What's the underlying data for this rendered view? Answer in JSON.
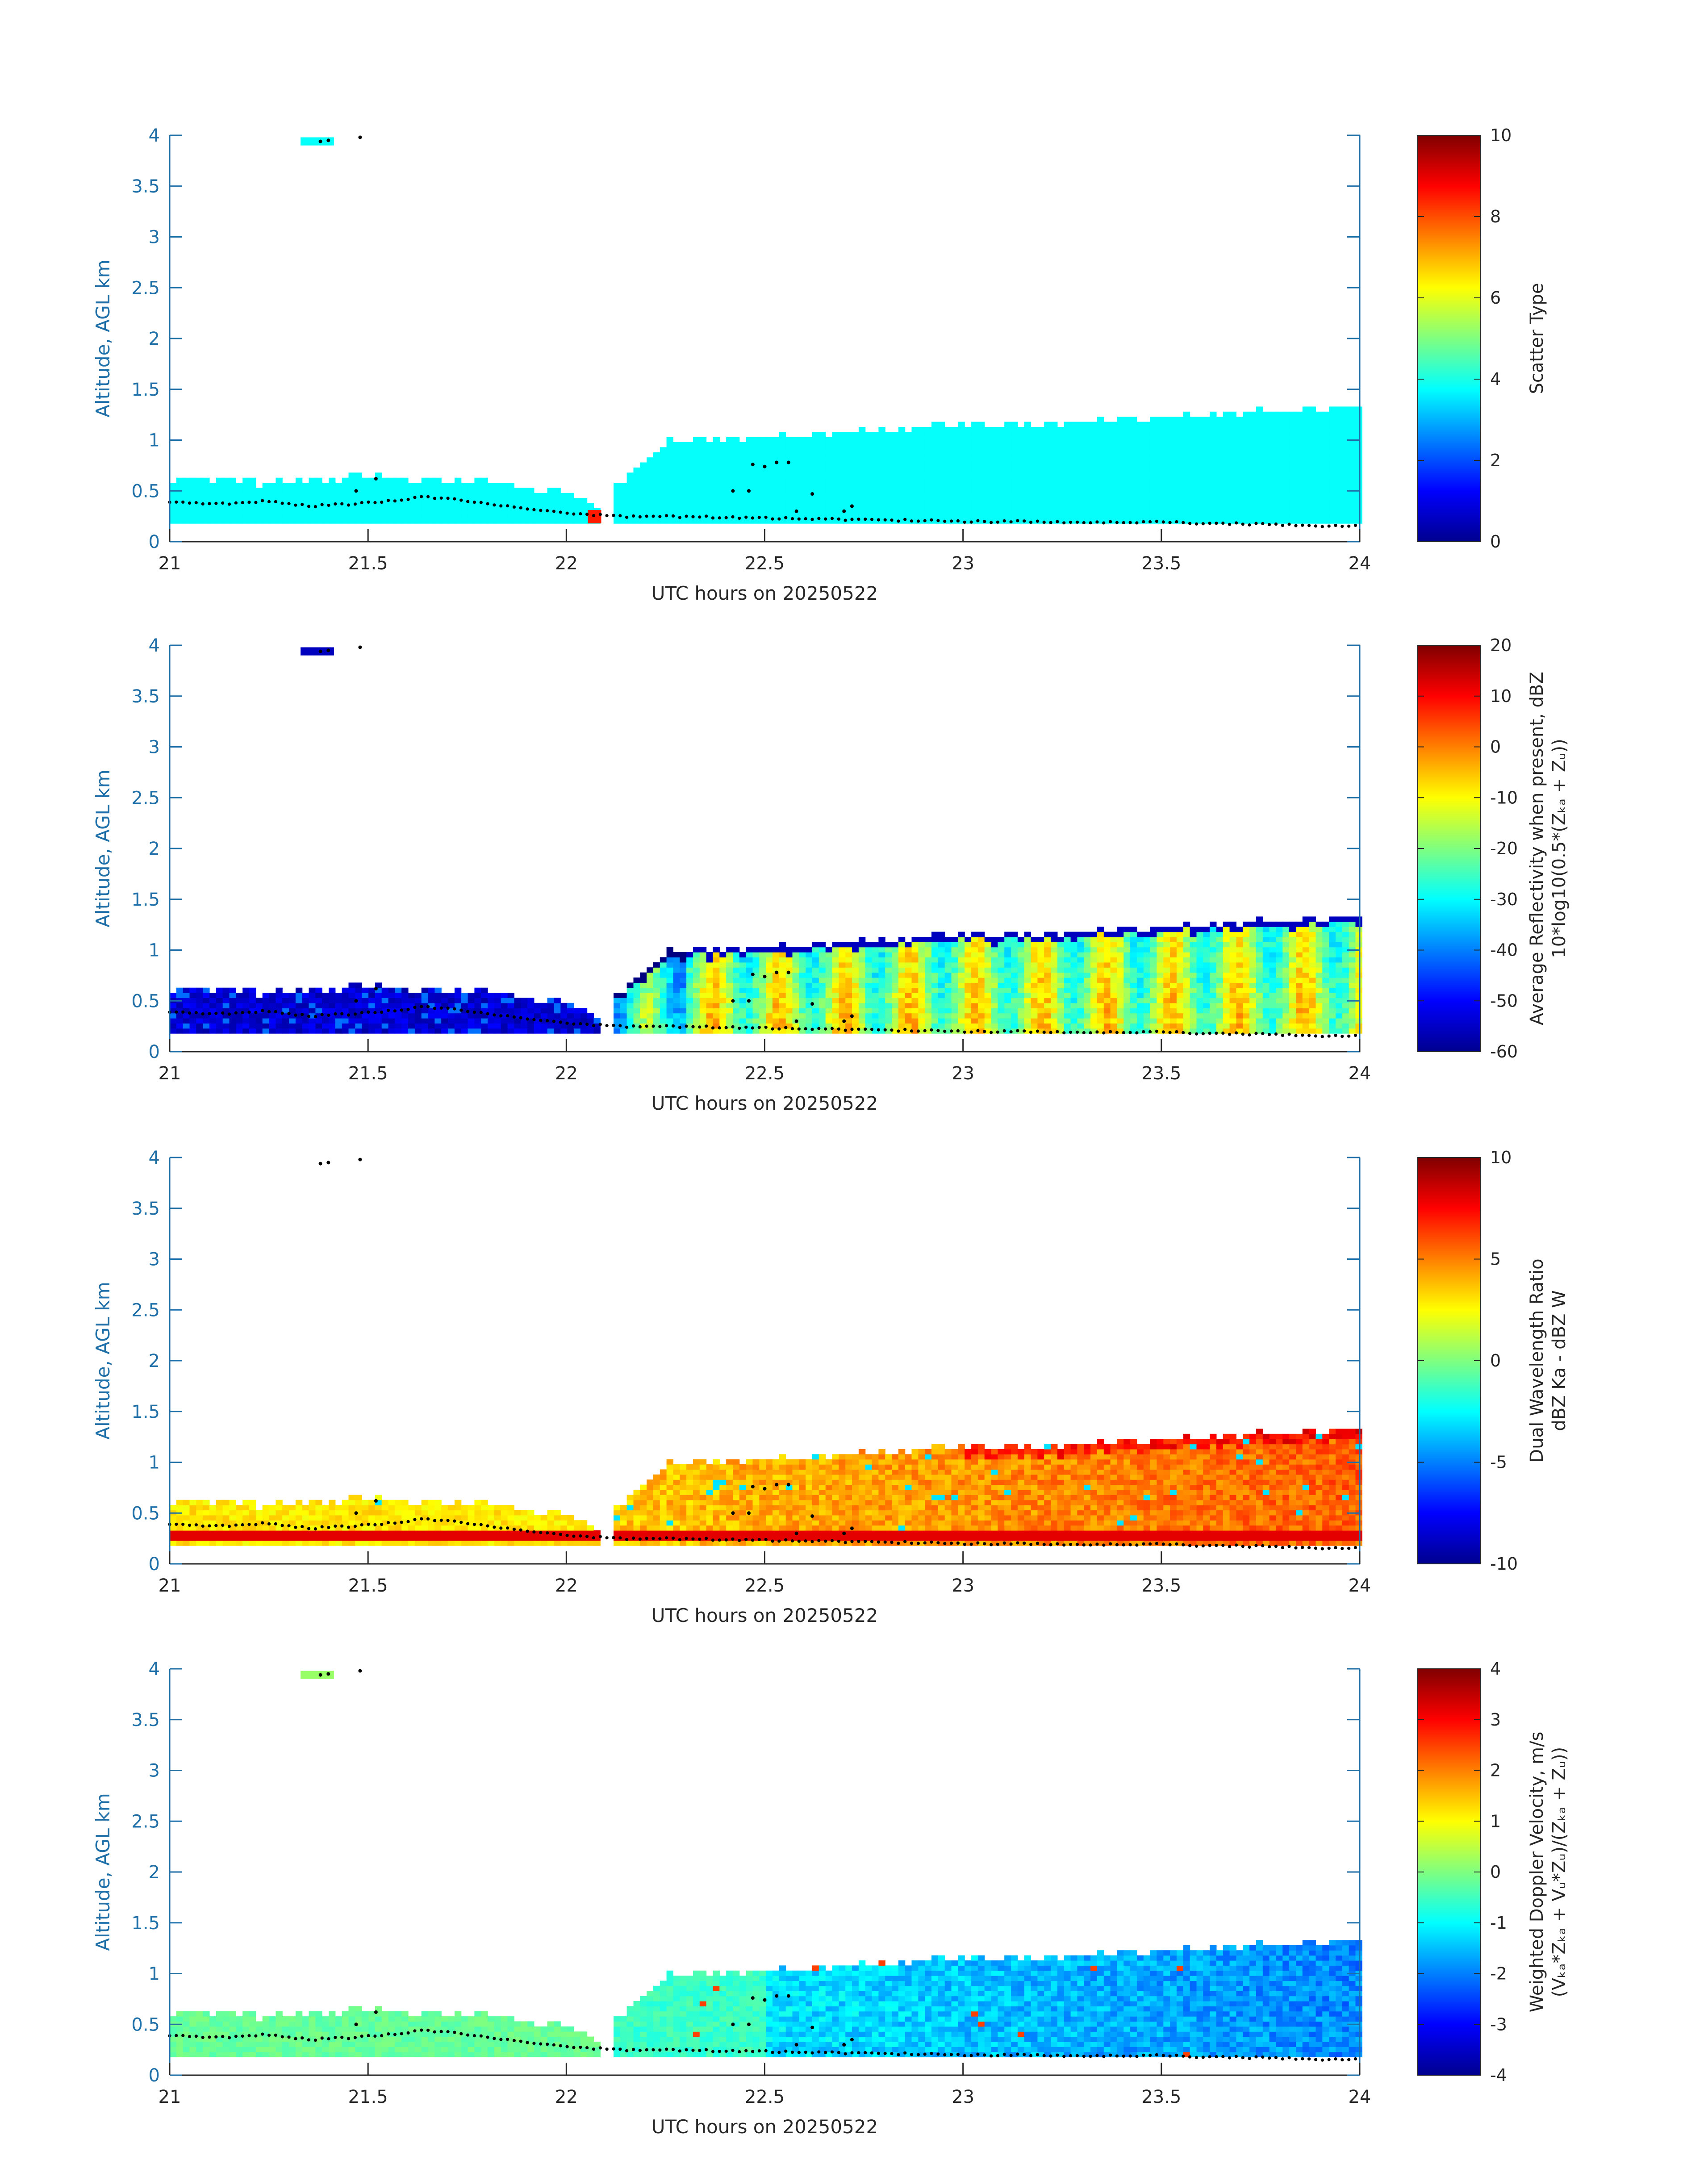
{
  "chart_data": [
    {
      "type": "heatmap",
      "id": "scatter-type",
      "x_range": [
        21,
        24
      ],
      "y_range": [
        0,
        4
      ],
      "xticks": [
        "21",
        "21.5",
        "22",
        "22.5",
        "23",
        "23.5",
        "24"
      ],
      "yticks": [
        "0",
        "0.5",
        "1",
        "1.5",
        "2",
        "2.5",
        "3",
        "3.5",
        "4"
      ],
      "xlabel": "UTC hours on 20250522",
      "ylabel": "Altitude, AGL km",
      "colorbar": {
        "range": [
          0,
          10
        ],
        "ticks": [
          "0",
          "2",
          "4",
          "6",
          "8",
          "10"
        ],
        "label": "Scatter Type",
        "label2": ""
      },
      "field": "scatter",
      "dominant_value": 3.8,
      "outlier": {
        "x": 22.07,
        "y": 0.25,
        "value": 8.5
      }
    },
    {
      "type": "heatmap",
      "id": "reflectivity",
      "x_range": [
        21,
        24
      ],
      "y_range": [
        0,
        4
      ],
      "xticks": [
        "21",
        "21.5",
        "22",
        "22.5",
        "23",
        "23.5",
        "24"
      ],
      "yticks": [
        "0",
        "0.5",
        "1",
        "1.5",
        "2",
        "2.5",
        "3",
        "3.5",
        "4"
      ],
      "xlabel": "UTC hours on 20250522",
      "ylabel": "Altitude, AGL km",
      "colorbar": {
        "range": [
          -60,
          20
        ],
        "ticks": [
          "-60",
          "-50",
          "-40",
          "-30",
          "-20",
          "-10",
          "0",
          "10",
          "20"
        ],
        "label": "Average Reflectivity when present, dBZ",
        "label2": "10*log10(0.5*(Zₖₐ + Zᵤ))"
      },
      "field": "reflectivity"
    },
    {
      "type": "heatmap",
      "id": "dwr",
      "x_range": [
        21,
        24
      ],
      "y_range": [
        0,
        4
      ],
      "xticks": [
        "21",
        "21.5",
        "22",
        "22.5",
        "23",
        "23.5",
        "24"
      ],
      "yticks": [
        "0",
        "0.5",
        "1",
        "1.5",
        "2",
        "2.5",
        "3",
        "3.5",
        "4"
      ],
      "xlabel": "UTC hours on 20250522",
      "ylabel": "Altitude, AGL km",
      "colorbar": {
        "range": [
          -10,
          10
        ],
        "ticks": [
          "-10",
          "-5",
          "0",
          "5",
          "10"
        ],
        "label": "Dual Wavelength Ratio",
        "label2": "dBZ Ka - dBZ W"
      },
      "field": "dwr"
    },
    {
      "type": "heatmap",
      "id": "doppler",
      "x_range": [
        21,
        24
      ],
      "y_range": [
        0,
        4
      ],
      "xticks": [
        "21",
        "21.5",
        "22",
        "22.5",
        "23",
        "23.5",
        "24"
      ],
      "yticks": [
        "0",
        "0.5",
        "1",
        "1.5",
        "2",
        "2.5",
        "3",
        "3.5",
        "4"
      ],
      "xlabel": "UTC hours on 20250522",
      "ylabel": "Altitude, AGL km",
      "colorbar": {
        "range": [
          -4,
          4
        ],
        "ticks": [
          "-4",
          "-3",
          "-2",
          "-1",
          "0",
          "1",
          "2",
          "3",
          "4"
        ],
        "label": "Weighted Doppler Velocity, m/s",
        "label2": "(Vₖₐ*Zₖₐ + Vᵤ*Zᵤ)/(Zₖₐ + Zᵤ))"
      },
      "field": "doppler"
    }
  ],
  "cloud": {
    "x_step": 0.0167,
    "y_step": 0.05,
    "base_km": 0.18,
    "top_profile": [
      {
        "x": 21.0,
        "top": 0.58
      },
      {
        "x": 21.1,
        "top": 0.6
      },
      {
        "x": 21.2,
        "top": 0.55
      },
      {
        "x": 21.4,
        "top": 0.6
      },
      {
        "x": 21.5,
        "top": 0.65
      },
      {
        "x": 21.6,
        "top": 0.58
      },
      {
        "x": 21.75,
        "top": 0.6
      },
      {
        "x": 21.85,
        "top": 0.52
      },
      {
        "x": 22.0,
        "top": 0.45
      },
      {
        "x": 22.07,
        "top": 0.3
      },
      {
        "x": 22.15,
        "top": 0.65
      },
      {
        "x": 22.25,
        "top": 0.95
      },
      {
        "x": 22.5,
        "top": 1.0
      },
      {
        "x": 22.9,
        "top": 1.1
      },
      {
        "x": 23.3,
        "top": 1.15
      },
      {
        "x": 23.7,
        "top": 1.25
      },
      {
        "x": 24.0,
        "top": 1.3
      }
    ],
    "upper_patch": {
      "x": [
        21.33,
        21.4
      ],
      "y": [
        3.9,
        3.98
      ]
    },
    "gap_x": [
      22.07,
      22.11
    ]
  },
  "cloud_base_dots": [
    {
      "x": 21.0,
      "y": 0.39
    },
    {
      "x": 21.15,
      "y": 0.37
    },
    {
      "x": 21.25,
      "y": 0.4
    },
    {
      "x": 21.35,
      "y": 0.35
    },
    {
      "x": 21.45,
      "y": 0.37
    },
    {
      "x": 21.55,
      "y": 0.4
    },
    {
      "x": 21.65,
      "y": 0.44
    },
    {
      "x": 21.75,
      "y": 0.4
    },
    {
      "x": 21.85,
      "y": 0.35
    },
    {
      "x": 21.95,
      "y": 0.3
    },
    {
      "x": 22.05,
      "y": 0.27
    },
    {
      "x": 22.15,
      "y": 0.25
    },
    {
      "x": 22.4,
      "y": 0.24
    },
    {
      "x": 22.7,
      "y": 0.22
    },
    {
      "x": 23.0,
      "y": 0.2
    },
    {
      "x": 23.5,
      "y": 0.19
    },
    {
      "x": 24.0,
      "y": 0.15
    }
  ],
  "scattered_dots": [
    {
      "x": 21.38,
      "y": 3.94
    },
    {
      "x": 21.4,
      "y": 3.95
    },
    {
      "x": 21.48,
      "y": 3.98
    },
    {
      "x": 21.52,
      "y": 0.62
    },
    {
      "x": 21.47,
      "y": 0.5
    },
    {
      "x": 22.47,
      "y": 0.76
    },
    {
      "x": 22.5,
      "y": 0.74
    },
    {
      "x": 22.53,
      "y": 0.78
    },
    {
      "x": 22.56,
      "y": 0.78
    },
    {
      "x": 22.42,
      "y": 0.5
    },
    {
      "x": 22.46,
      "y": 0.5
    },
    {
      "x": 22.58,
      "y": 0.3
    },
    {
      "x": 22.62,
      "y": 0.47
    },
    {
      "x": 22.72,
      "y": 0.35
    },
    {
      "x": 22.7,
      "y": 0.3
    }
  ]
}
